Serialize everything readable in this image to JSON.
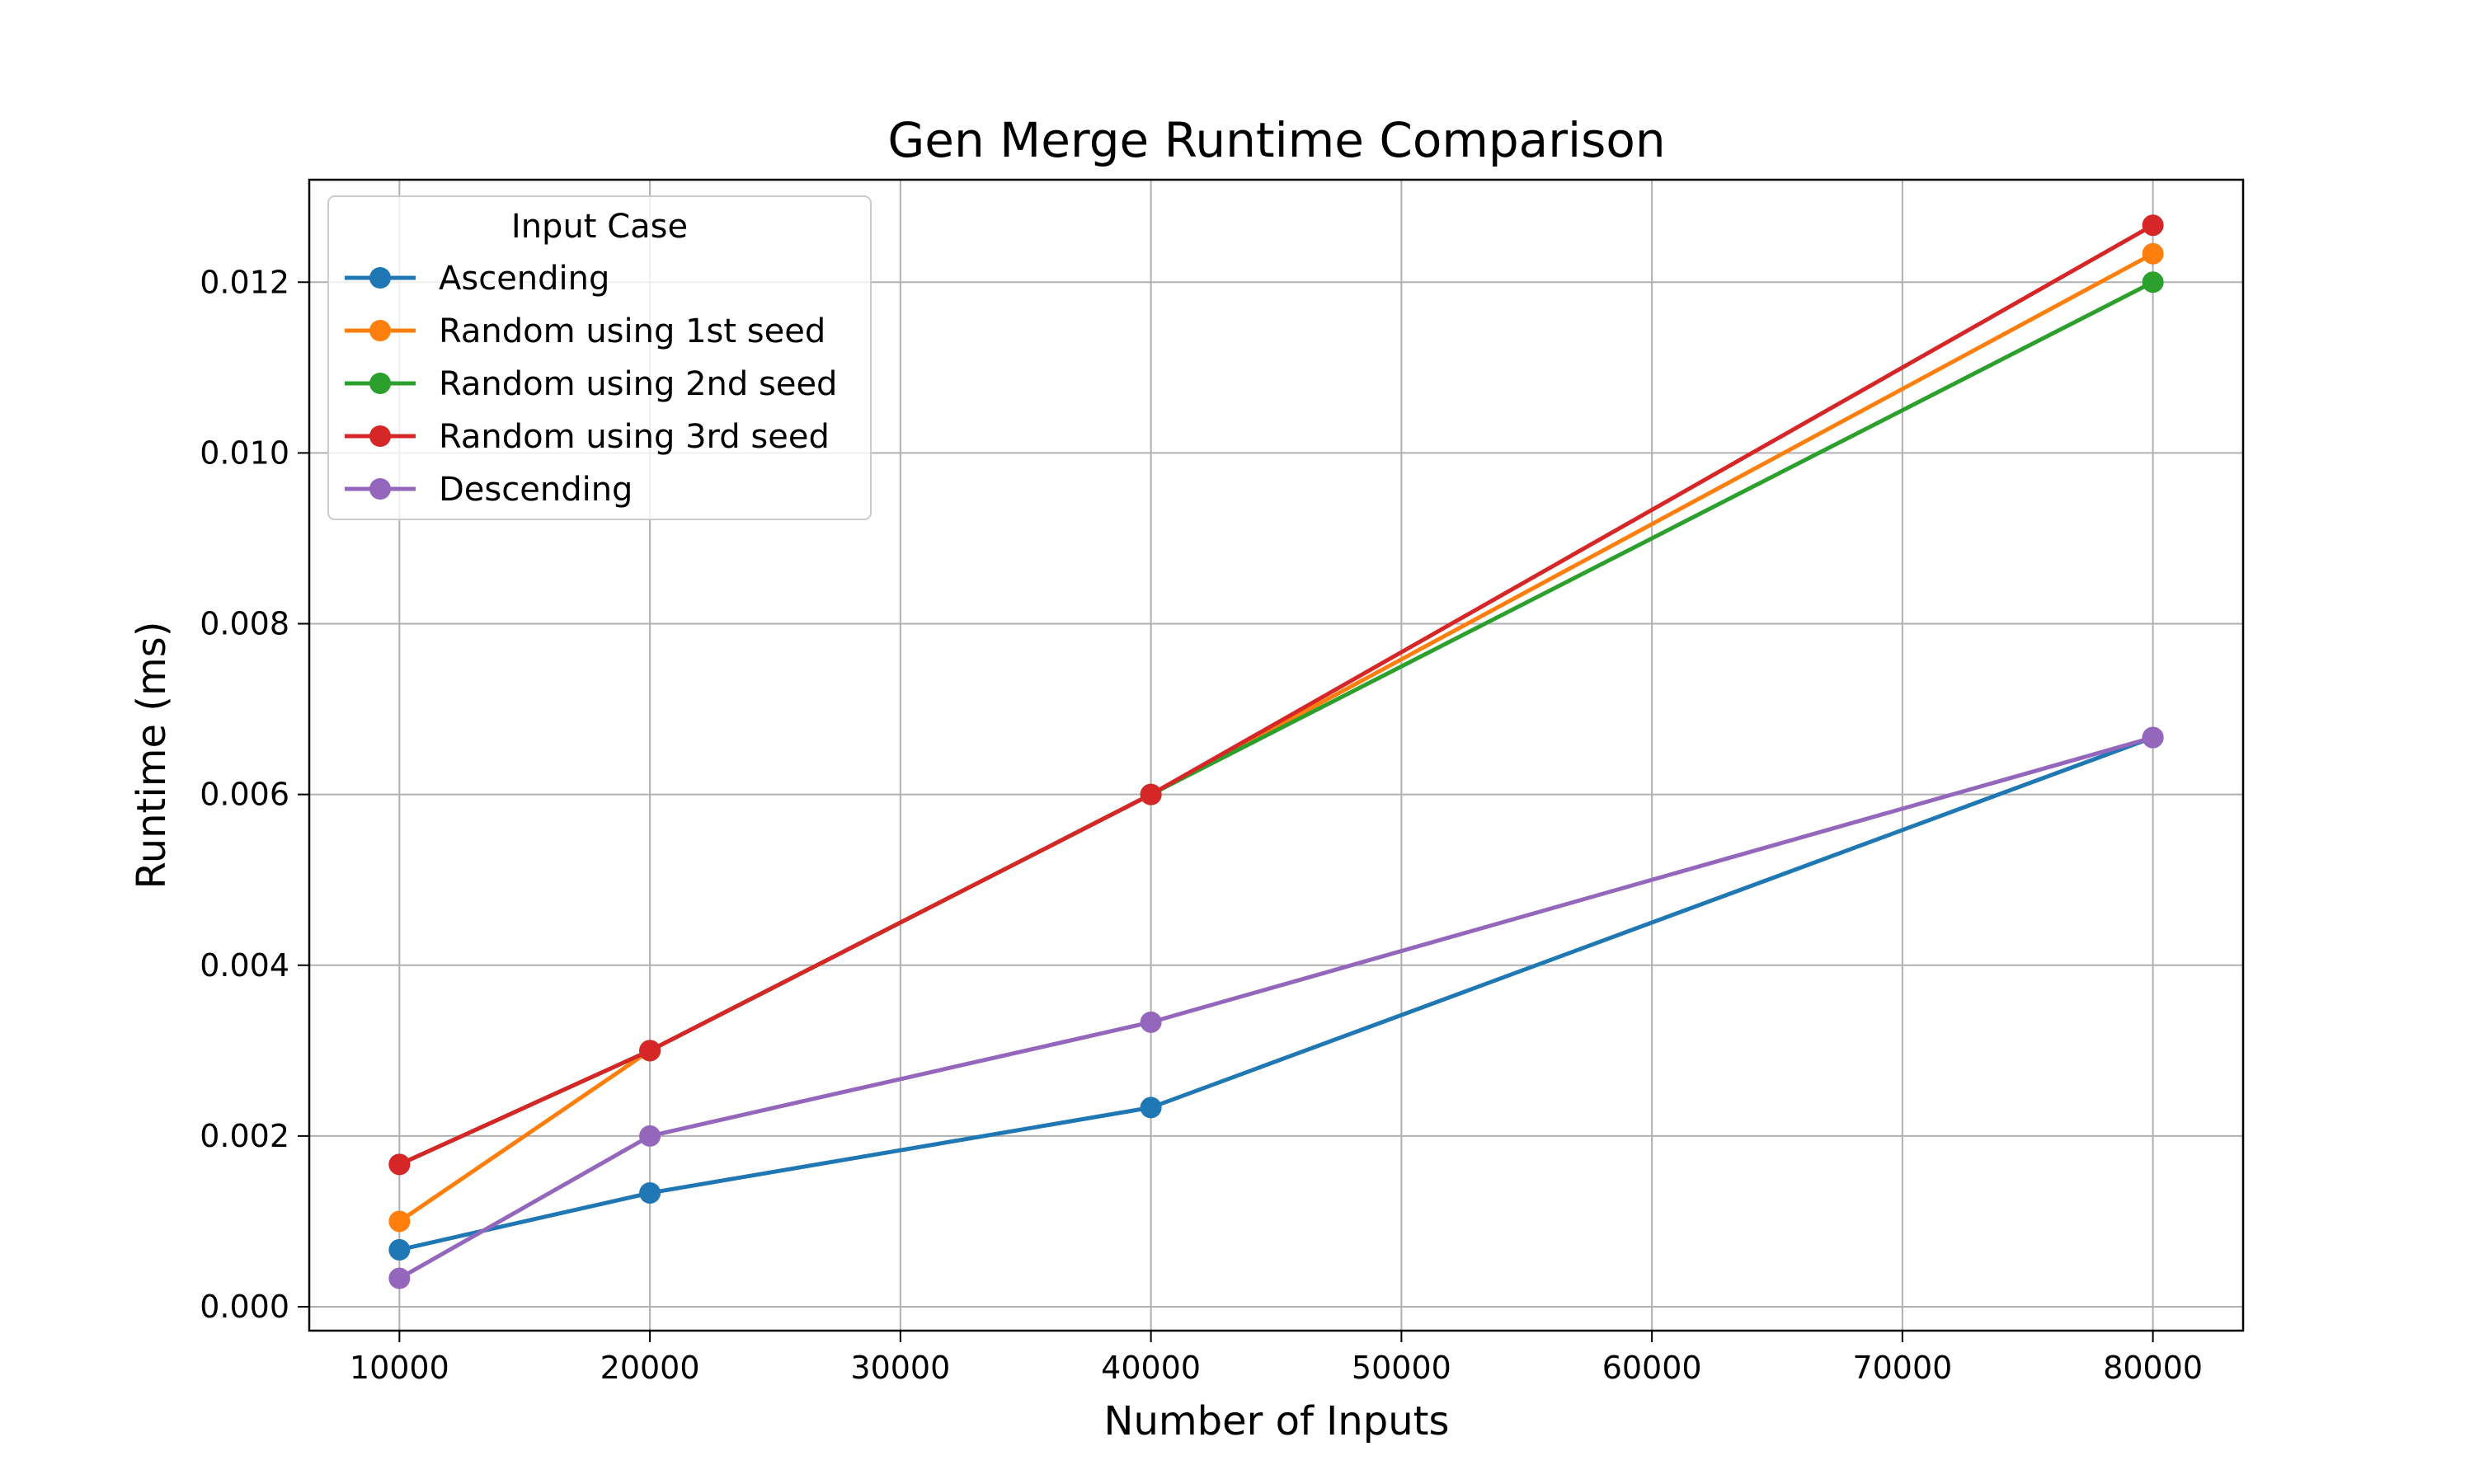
{
  "chart_data": {
    "type": "line",
    "title": "Gen Merge Runtime Comparison",
    "xlabel": "Number of Inputs",
    "ylabel": "Runtime (ms)",
    "x": [
      10000,
      20000,
      40000,
      80000
    ],
    "xlim": [
      6400,
      83600
    ],
    "ylim": [
      -0.00028,
      0.0132
    ],
    "xticks": [
      10000,
      20000,
      30000,
      40000,
      50000,
      60000,
      70000,
      80000
    ],
    "yticks": [
      0.0,
      0.002,
      0.004,
      0.006,
      0.008,
      0.01,
      0.012
    ],
    "xtick_labels": [
      "10000",
      "20000",
      "30000",
      "40000",
      "50000",
      "60000",
      "70000",
      "80000"
    ],
    "ytick_labels": [
      "0.000",
      "0.002",
      "0.004",
      "0.006",
      "0.008",
      "0.010",
      "0.012"
    ],
    "grid": true,
    "legend": {
      "title": "Input Case",
      "placement": "top-left"
    },
    "series": [
      {
        "name": "Ascending",
        "color": "#1f77b4",
        "values": [
          0.000667,
          0.001333,
          0.002333,
          0.006667
        ]
      },
      {
        "name": "Random using 1st seed",
        "color": "#ff7f0e",
        "values": [
          0.001,
          0.003,
          0.006,
          0.012333
        ]
      },
      {
        "name": "Random using 2nd seed",
        "color": "#2ca02c",
        "values": [
          0.001667,
          0.003,
          0.006,
          0.012
        ]
      },
      {
        "name": "Random using 3rd seed",
        "color": "#d62728",
        "values": [
          0.001667,
          0.003,
          0.006,
          0.012667
        ]
      },
      {
        "name": "Descending",
        "color": "#9467bd",
        "values": [
          0.000333,
          0.002,
          0.003333,
          0.006667
        ]
      }
    ]
  }
}
